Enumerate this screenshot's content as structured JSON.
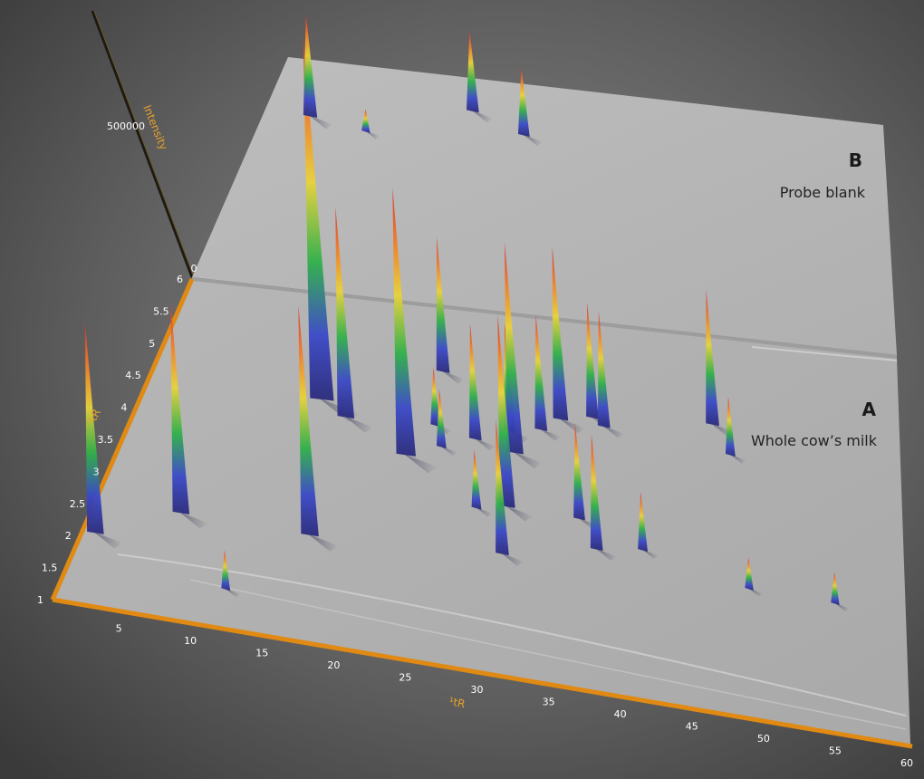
{
  "chart_data": {
    "type": "surface-3d",
    "x_axis": {
      "label": "¹tR",
      "range": [
        0,
        60
      ],
      "ticks": [
        "5",
        "10",
        "15",
        "20",
        "25",
        "30",
        "35",
        "40",
        "45",
        "50",
        "55",
        "60"
      ]
    },
    "y_axis": {
      "label": "²tR",
      "range": [
        1,
        6
      ],
      "ticks": [
        "1",
        "1.5",
        "2",
        "2.5",
        "3",
        "3.5",
        "4",
        "4.5",
        "5",
        "5.5",
        "6"
      ]
    },
    "z_axis": {
      "label": "Intensity",
      "ticks": [
        "0",
        "500000"
      ]
    },
    "panels": [
      {
        "letter": "A",
        "name": "Whole cow’s milk",
        "peaks": [
          {
            "x": 1,
            "y": 2.1,
            "h": 0.55
          },
          {
            "x": 6,
            "y": 2.6,
            "h": 0.55
          },
          {
            "x": 11,
            "y": 1.6,
            "h": 0.1
          },
          {
            "x": 12,
            "y": 4.6,
            "h": 0.95
          },
          {
            "x": 14,
            "y": 4.4,
            "h": 0.55
          },
          {
            "x": 15,
            "y": 2.6,
            "h": 0.6
          },
          {
            "x": 19,
            "y": 4.0,
            "h": 0.7
          },
          {
            "x": 19,
            "y": 5.3,
            "h": 0.35
          },
          {
            "x": 20,
            "y": 4.5,
            "h": 0.15
          },
          {
            "x": 21,
            "y": 4.2,
            "h": 0.15
          },
          {
            "x": 23,
            "y": 4.4,
            "h": 0.3
          },
          {
            "x": 25,
            "y": 4.6,
            "h": 0.28
          },
          {
            "x": 25,
            "y": 3.4,
            "h": 0.15
          },
          {
            "x": 26,
            "y": 4.3,
            "h": 0.55
          },
          {
            "x": 27,
            "y": 4.7,
            "h": 0.3
          },
          {
            "x": 27,
            "y": 3.5,
            "h": 0.5
          },
          {
            "x": 28,
            "y": 2.8,
            "h": 0.35
          },
          {
            "x": 28,
            "y": 4.9,
            "h": 0.45
          },
          {
            "x": 30,
            "y": 5.0,
            "h": 0.3
          },
          {
            "x": 31,
            "y": 4.9,
            "h": 0.3
          },
          {
            "x": 32,
            "y": 3.5,
            "h": 0.25
          },
          {
            "x": 34,
            "y": 3.1,
            "h": 0.3
          },
          {
            "x": 37,
            "y": 3.2,
            "h": 0.15
          },
          {
            "x": 38,
            "y": 5.2,
            "h": 0.35
          },
          {
            "x": 40,
            "y": 4.8,
            "h": 0.15
          },
          {
            "x": 45,
            "y": 2.9,
            "h": 0.08
          },
          {
            "x": 51,
            "y": 2.9,
            "h": 0.08
          }
        ]
      },
      {
        "letter": "B",
        "name": "Probe blank",
        "peaks": [
          {
            "x": 4,
            "y": 4.8,
            "h": 0.38
          },
          {
            "x": 9,
            "y": 4.6,
            "h": 0.08
          },
          {
            "x": 17,
            "y": 5.3,
            "h": 0.3
          },
          {
            "x": 22,
            "y": 4.9,
            "h": 0.25
          }
        ]
      }
    ]
  }
}
